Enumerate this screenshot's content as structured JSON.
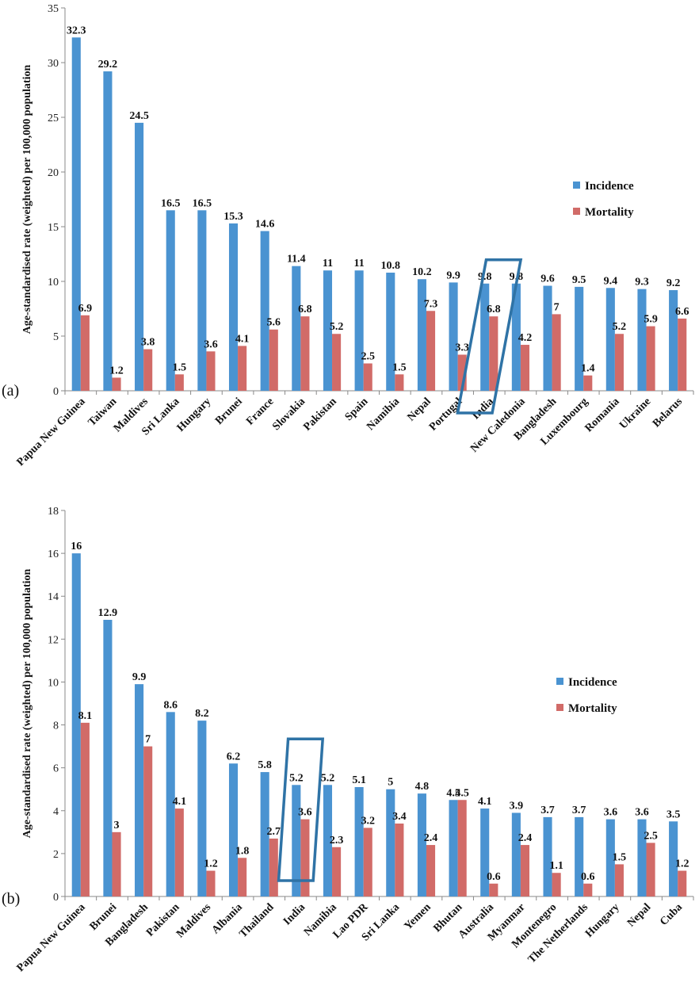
{
  "colors": {
    "incidence": "#4a93d1",
    "mortality": "#d16b68",
    "highlight": "#2f73a6",
    "axis": "#888888"
  },
  "chart_data": [
    {
      "type": "bar",
      "panel_label": "(a)",
      "ylabel": "Age-standardised rate (weighted) per 100,000 population",
      "ylim": [
        0,
        35
      ],
      "yticks": [
        0,
        5,
        10,
        15,
        20,
        25,
        30,
        35
      ],
      "legend_placement": "right",
      "highlight_category": "India",
      "categories": [
        "Papua New Guinea",
        "Taiwan",
        "Maldives",
        "Sri Lanka",
        "Hungary",
        "Brunei",
        "France",
        "Slovakia",
        "Pakistan",
        "Spain",
        "Namibia",
        "Nepal",
        "Portugal",
        "India",
        "New Caledonia",
        "Bangladesh",
        "Luxembourg",
        "Romania",
        "Ukraine",
        "Belarus"
      ],
      "series": [
        {
          "name": "Incidence",
          "values": [
            32.3,
            29.2,
            24.5,
            16.5,
            16.5,
            15.3,
            14.6,
            11.4,
            11,
            11,
            10.8,
            10.2,
            9.9,
            9.8,
            9.8,
            9.6,
            9.5,
            9.4,
            9.3,
            9.2
          ]
        },
        {
          "name": "Mortality",
          "values": [
            6.9,
            1.2,
            3.8,
            1.5,
            3.6,
            4.1,
            5.6,
            6.8,
            5.2,
            2.5,
            1.5,
            7.3,
            3.3,
            6.8,
            4.2,
            7,
            1.4,
            5.2,
            5.9,
            6.6
          ]
        }
      ]
    },
    {
      "type": "bar",
      "panel_label": "(b)",
      "ylabel": "Age-standardised rate (weighted) per 100,000 population",
      "ylim": [
        0,
        18
      ],
      "yticks": [
        0,
        2,
        4,
        6,
        8,
        10,
        12,
        14,
        16,
        18
      ],
      "legend_placement": "right",
      "highlight_category": "India",
      "categories": [
        "Papua New Guinea",
        "Brunei",
        "Bangladesh",
        "Pakistan",
        "Maldives",
        "Albania",
        "Thailand",
        "India",
        "Namibia",
        "Lao PDR",
        "Sri Lanka",
        "Yemen",
        "Bhutan",
        "Australia",
        "Myanmar",
        "Montenegro",
        "The Netherlands",
        "Hungary",
        "Nepal",
        "Cuba"
      ],
      "series": [
        {
          "name": "Incidence",
          "values": [
            16,
            12.9,
            9.9,
            8.6,
            8.2,
            6.2,
            5.8,
            5.2,
            5.2,
            5.1,
            5,
            4.8,
            4.5,
            4.1,
            3.9,
            3.7,
            3.7,
            3.6,
            3.6,
            3.5
          ]
        },
        {
          "name": "Mortality",
          "values": [
            8.1,
            3,
            7,
            4.1,
            1.2,
            1.8,
            2.7,
            3.6,
            2.3,
            3.2,
            3.4,
            2.4,
            4.5,
            0.6,
            2.4,
            1.1,
            0.6,
            1.5,
            2.5,
            1.2
          ]
        }
      ]
    }
  ]
}
